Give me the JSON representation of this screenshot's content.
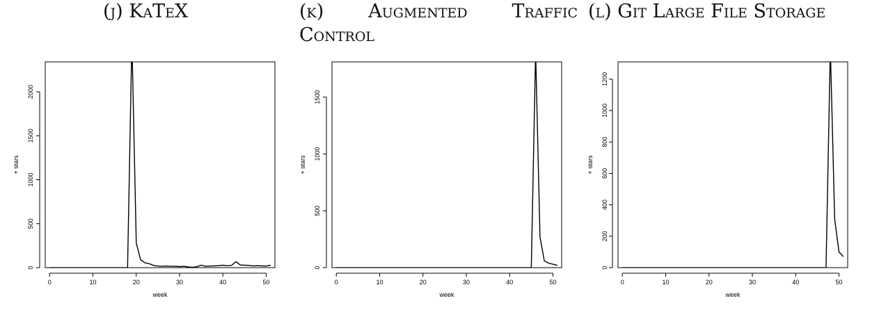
{
  "captions": {
    "j": "(j) KaTeX",
    "k_line1": "(k) Augmented Traffic",
    "k_line2": "Control",
    "l": "(l) Git Large File Storage"
  },
  "chart_data": [
    {
      "type": "line",
      "xlabel": "week",
      "ylabel": "+ stars",
      "xlim": [
        -1,
        52
      ],
      "ylim": [
        0,
        2340
      ],
      "xticks": [
        0,
        10,
        20,
        30,
        40,
        50
      ],
      "yticks": [
        0,
        500,
        1000,
        1500,
        2000
      ],
      "x": [
        0,
        1,
        2,
        3,
        4,
        5,
        6,
        7,
        8,
        9,
        10,
        11,
        12,
        13,
        14,
        15,
        16,
        17,
        18,
        19,
        20,
        21,
        22,
        23,
        24,
        25,
        26,
        27,
        28,
        29,
        30,
        31,
        32,
        33,
        34,
        35,
        36,
        37,
        38,
        39,
        40,
        41,
        42,
        43,
        44,
        45,
        46,
        47,
        48,
        49,
        50,
        51
      ],
      "y": [
        0,
        0,
        0,
        0,
        0,
        0,
        0,
        0,
        0,
        0,
        0,
        0,
        0,
        0,
        0,
        0,
        0,
        0,
        0,
        2600,
        280,
        90,
        55,
        45,
        25,
        18,
        15,
        18,
        15,
        15,
        12,
        15,
        8,
        5,
        10,
        28,
        15,
        18,
        20,
        22,
        28,
        22,
        25,
        68,
        30,
        28,
        25,
        20,
        22,
        20,
        18,
        28
      ]
    },
    {
      "type": "line",
      "xlabel": "week",
      "ylabel": "+ stars",
      "xlim": [
        -1,
        52
      ],
      "ylim": [
        0,
        1810
      ],
      "xticks": [
        0,
        10,
        20,
        30,
        40,
        50
      ],
      "yticks": [
        0,
        500,
        1000,
        1500
      ],
      "x": [
        0,
        1,
        2,
        3,
        4,
        5,
        6,
        7,
        8,
        9,
        10,
        11,
        12,
        13,
        14,
        15,
        16,
        17,
        18,
        19,
        20,
        21,
        22,
        23,
        24,
        25,
        26,
        27,
        28,
        29,
        30,
        31,
        32,
        33,
        34,
        35,
        36,
        37,
        38,
        39,
        40,
        41,
        42,
        43,
        44,
        45,
        46,
        47,
        48,
        49,
        50,
        51
      ],
      "y": [
        0,
        0,
        0,
        0,
        0,
        0,
        0,
        0,
        0,
        0,
        0,
        0,
        0,
        0,
        0,
        0,
        0,
        0,
        0,
        0,
        0,
        0,
        0,
        0,
        0,
        0,
        0,
        0,
        0,
        0,
        0,
        0,
        0,
        0,
        0,
        0,
        0,
        0,
        0,
        0,
        0,
        0,
        0,
        0,
        0,
        0,
        1900,
        270,
        60,
        40,
        30,
        20
      ]
    },
    {
      "type": "line",
      "xlabel": "week",
      "ylabel": "+ stars",
      "xlim": [
        -1,
        52
      ],
      "ylim": [
        0,
        1310
      ],
      "xticks": [
        0,
        10,
        20,
        30,
        40,
        50
      ],
      "yticks": [
        0,
        200,
        400,
        600,
        800,
        1000,
        1200
      ],
      "x": [
        0,
        1,
        2,
        3,
        4,
        5,
        6,
        7,
        8,
        9,
        10,
        11,
        12,
        13,
        14,
        15,
        16,
        17,
        18,
        19,
        20,
        21,
        22,
        23,
        24,
        25,
        26,
        27,
        28,
        29,
        30,
        31,
        32,
        33,
        34,
        35,
        36,
        37,
        38,
        39,
        40,
        41,
        42,
        43,
        44,
        45,
        46,
        47,
        48,
        49,
        50,
        51
      ],
      "y": [
        0,
        0,
        0,
        0,
        0,
        0,
        0,
        0,
        0,
        0,
        0,
        0,
        0,
        0,
        0,
        0,
        0,
        0,
        0,
        0,
        0,
        0,
        0,
        0,
        0,
        0,
        0,
        0,
        0,
        0,
        0,
        0,
        0,
        0,
        0,
        0,
        0,
        0,
        0,
        0,
        0,
        0,
        0,
        0,
        0,
        0,
        0,
        0,
        1400,
        310,
        100,
        70
      ]
    }
  ]
}
